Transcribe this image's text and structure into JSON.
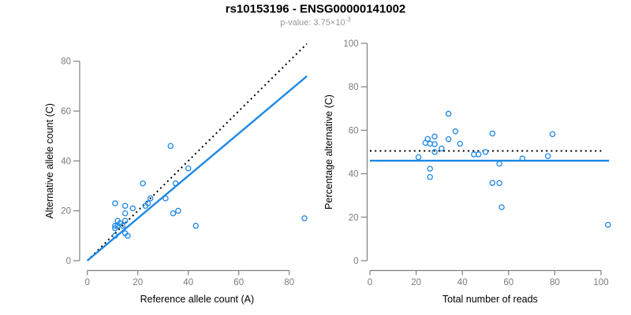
{
  "page": {
    "background": "#ffffff"
  },
  "header": {
    "title": "rs10153196 - ENSG00000141002",
    "subtitle_prefix": "p-value: 3.75×10",
    "subtitle_exponent": "-3"
  },
  "style": {
    "accent_blue": "#1E88E5",
    "axis_color": "#808080",
    "tick_label_color": "#7a7a7a",
    "axis_title_color": "#000000",
    "dotted_line_color": "#000000",
    "point_color": "#1E88E5"
  },
  "chart_data": [
    {
      "id": "allele-counts-scatter",
      "type": "scatter",
      "xlabel": "Reference allele count (A)",
      "ylabel": "Alternative allele count (C)",
      "xticks": [
        0,
        20,
        40,
        60,
        80
      ],
      "yticks": [
        0,
        20,
        40,
        60,
        80
      ],
      "xlim": [
        0,
        87
      ],
      "ylim": [
        0,
        87
      ],
      "grid": false,
      "marker": "open-circle",
      "points": [
        [
          33,
          46
        ],
        [
          40,
          37
        ],
        [
          22,
          31
        ],
        [
          35,
          31
        ],
        [
          25,
          25
        ],
        [
          31,
          25
        ],
        [
          11,
          23
        ],
        [
          24,
          23
        ],
        [
          23,
          22
        ],
        [
          15,
          22
        ],
        [
          18,
          21
        ],
        [
          36,
          20
        ],
        [
          15,
          19
        ],
        [
          34,
          19
        ],
        [
          86,
          17
        ],
        [
          12,
          16
        ],
        [
          15,
          16
        ],
        [
          13,
          15
        ],
        [
          14,
          14
        ],
        [
          12,
          14
        ],
        [
          11,
          14
        ],
        [
          43,
          14
        ],
        [
          11,
          13
        ],
        [
          15,
          11
        ],
        [
          16,
          10
        ],
        [
          11,
          10
        ]
      ],
      "lines": [
        {
          "name": "identity-line",
          "style": "dotted",
          "color": "#000000",
          "x1": 0,
          "y1": 0,
          "x2": 87,
          "y2": 87
        },
        {
          "name": "fit-line",
          "style": "solid",
          "color": "#1E88E5",
          "x1": 0,
          "y1": 0,
          "x2": 87,
          "y2": 74
        }
      ]
    },
    {
      "id": "percentage-vs-reads-scatter",
      "type": "scatter",
      "xlabel": "Total number of reads",
      "ylabel": "Percentage alternative (C)",
      "xticks": [
        0,
        20,
        40,
        60,
        80,
        100
      ],
      "yticks": [
        0,
        20,
        40,
        60,
        80,
        100
      ],
      "xlim": [
        0,
        104
      ],
      "ylim": [
        0,
        100
      ],
      "grid": false,
      "marker": "open-circle",
      "points": [
        [
          79,
          58.2
        ],
        [
          77,
          48.1
        ],
        [
          53,
          58.5
        ],
        [
          66,
          47.0
        ],
        [
          50,
          50.0
        ],
        [
          56,
          44.6
        ],
        [
          34,
          67.6
        ],
        [
          47,
          48.9
        ],
        [
          45,
          48.9
        ],
        [
          37,
          59.5
        ],
        [
          39,
          53.8
        ],
        [
          56,
          35.7
        ],
        [
          34,
          55.9
        ],
        [
          53,
          35.8
        ],
        [
          103,
          16.5
        ],
        [
          28,
          57.1
        ],
        [
          31,
          51.6
        ],
        [
          28,
          53.6
        ],
        [
          28,
          50.0
        ],
        [
          26,
          53.8
        ],
        [
          25,
          56.0
        ],
        [
          57,
          24.6
        ],
        [
          24,
          54.2
        ],
        [
          26,
          42.3
        ],
        [
          26,
          38.5
        ],
        [
          21,
          47.6
        ]
      ],
      "lines": [
        {
          "name": "expected-50pct-line",
          "style": "dotted",
          "color": "#000000",
          "x1": 0,
          "y1": 50.5,
          "x2": 101,
          "y2": 50.5
        },
        {
          "name": "mean-percentage-line",
          "style": "solid",
          "color": "#1E88E5",
          "x1": 0,
          "y1": 46,
          "x2": 103.5,
          "y2": 46
        }
      ]
    }
  ]
}
